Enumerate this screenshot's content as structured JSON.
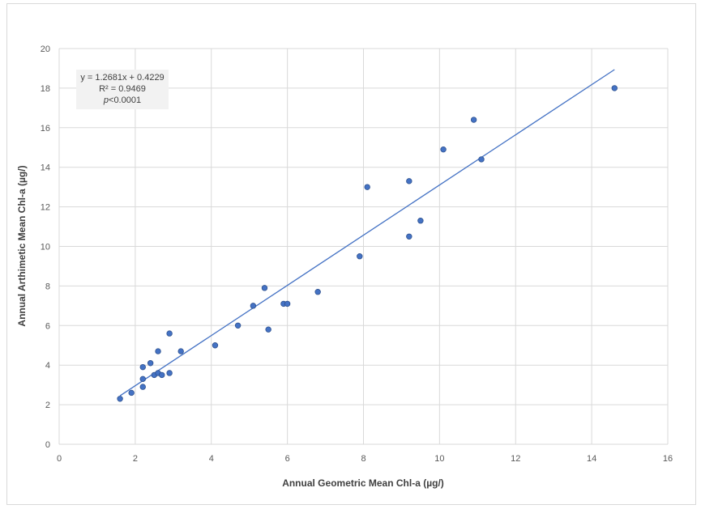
{
  "chart_data": {
    "type": "scatter",
    "title": "",
    "xlabel": "Annual  Geometric Mean Chl-a (µg/)",
    "ylabel": "Annual  Arthimetic  Mean Chl-a (µg/)",
    "xlim": [
      0,
      16
    ],
    "ylim": [
      0,
      20
    ],
    "xticks": [
      0,
      2,
      4,
      6,
      8,
      10,
      12,
      14,
      16
    ],
    "yticks": [
      0,
      2,
      4,
      6,
      8,
      10,
      12,
      14,
      16,
      18,
      20
    ],
    "grid": true,
    "legend": "none",
    "point_color": "#4472c4",
    "trendline_color": "#4472c4",
    "points": [
      {
        "x": 1.6,
        "y": 2.3
      },
      {
        "x": 1.9,
        "y": 2.6
      },
      {
        "x": 2.2,
        "y": 2.9
      },
      {
        "x": 2.2,
        "y": 3.3
      },
      {
        "x": 2.2,
        "y": 3.9
      },
      {
        "x": 2.4,
        "y": 4.1
      },
      {
        "x": 2.5,
        "y": 3.5
      },
      {
        "x": 2.6,
        "y": 3.6
      },
      {
        "x": 2.6,
        "y": 4.7
      },
      {
        "x": 2.7,
        "y": 3.5
      },
      {
        "x": 2.9,
        "y": 3.6
      },
      {
        "x": 2.9,
        "y": 5.6
      },
      {
        "x": 3.2,
        "y": 4.7
      },
      {
        "x": 4.1,
        "y": 5.0
      },
      {
        "x": 4.7,
        "y": 6.0
      },
      {
        "x": 5.1,
        "y": 7.0
      },
      {
        "x": 5.4,
        "y": 7.9
      },
      {
        "x": 5.5,
        "y": 5.8
      },
      {
        "x": 5.9,
        "y": 7.1
      },
      {
        "x": 6.0,
        "y": 7.1
      },
      {
        "x": 6.8,
        "y": 7.7
      },
      {
        "x": 7.9,
        "y": 9.5
      },
      {
        "x": 8.1,
        "y": 13.0
      },
      {
        "x": 9.2,
        "y": 10.5
      },
      {
        "x": 9.2,
        "y": 13.3
      },
      {
        "x": 9.5,
        "y": 11.3
      },
      {
        "x": 10.1,
        "y": 14.9
      },
      {
        "x": 10.9,
        "y": 16.4
      },
      {
        "x": 11.1,
        "y": 14.4
      },
      {
        "x": 14.6,
        "y": 18.0
      }
    ],
    "trendline": {
      "slope": 1.2681,
      "intercept": 0.4229,
      "x_range": [
        1.6,
        14.6
      ],
      "equation": "y = 1.2681x + 0.4229",
      "r2": "R² = 0.9469",
      "p_label": "p",
      "p_value": "<0.0001"
    },
    "annotation_box": {
      "fill": "#f2f2f2",
      "placement": "top-left"
    }
  }
}
